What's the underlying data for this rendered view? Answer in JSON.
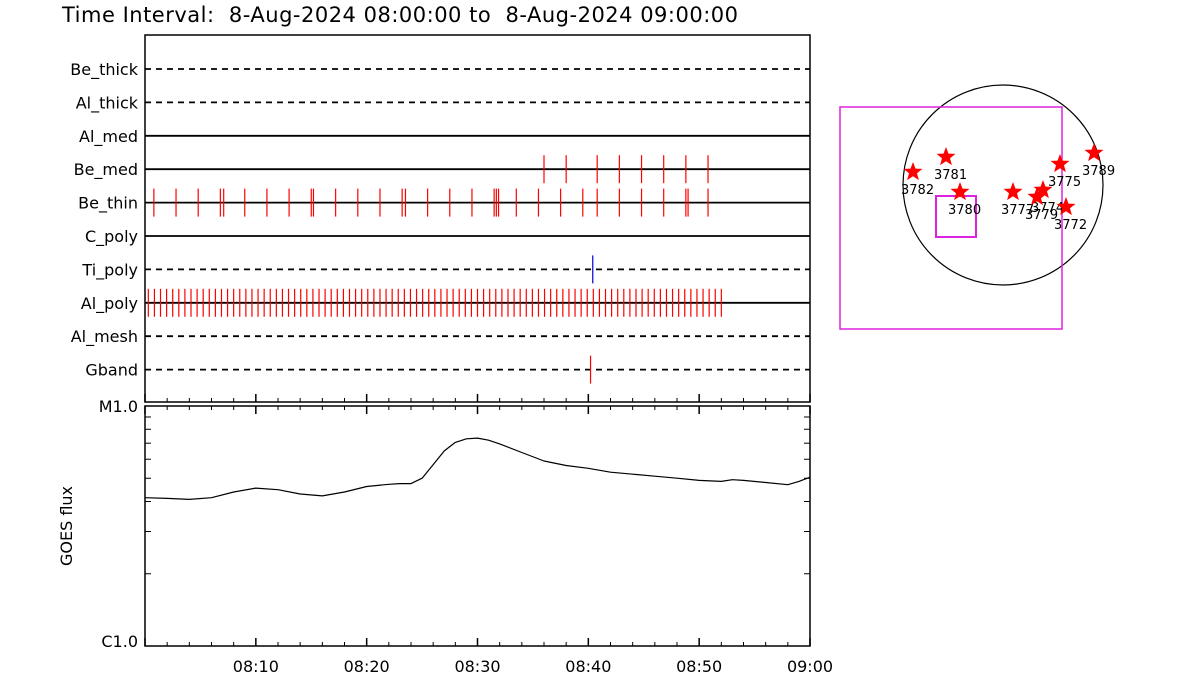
{
  "title": "Time Interval:  8-Aug-2024 08:00:00 to  8-Aug-2024 09:00:00",
  "colors": {
    "event_red": "#ff0000",
    "event_blue": "#0000cc",
    "box_magenta": "#dd22dd",
    "star_red": "#ff0000"
  },
  "chart_data": [
    {
      "type": "event-timeline",
      "x_range_minutes": [
        0,
        60
      ],
      "channels": [
        {
          "name": "Be_thick",
          "line": "dashed",
          "events": []
        },
        {
          "name": "Al_thick",
          "line": "dashed",
          "events": []
        },
        {
          "name": "Al_med",
          "line": "solid",
          "events": []
        },
        {
          "name": "Be_med",
          "line": "solid",
          "events": [
            36.0,
            38.0,
            40.8,
            42.8,
            44.8,
            46.8,
            48.8,
            50.8
          ]
        },
        {
          "name": "Be_thin",
          "line": "solid",
          "events": [
            0.8,
            2.8,
            4.8,
            6.8,
            7.1,
            9.0,
            11.0,
            13.0,
            15.0,
            15.2,
            17.2,
            19.2,
            21.2,
            23.2,
            23.5,
            25.5,
            27.5,
            29.5,
            31.5,
            31.7,
            31.9,
            33.5,
            35.5,
            37.5,
            39.5,
            40.8,
            42.8,
            44.8,
            46.8,
            48.8,
            49.0,
            50.8
          ]
        },
        {
          "name": "C_poly",
          "line": "solid",
          "events": []
        },
        {
          "name": "Ti_poly",
          "line": "dashed",
          "events": [
            40.4
          ],
          "event_color": "blue"
        },
        {
          "name": "Al_poly",
          "line": "solid",
          "events_from": 0.3,
          "events_to": 52.3,
          "event_step": 0.55
        },
        {
          "name": "Al_mesh",
          "line": "dashed",
          "events": []
        },
        {
          "name": "Gband",
          "line": "dashed",
          "events": [
            40.2
          ]
        }
      ]
    },
    {
      "type": "line",
      "yscale": "log",
      "ylabel": "GOES flux",
      "y_top_label": "M1.0",
      "y_bottom_label": "C1.0",
      "ylim": [
        1e-06,
        1e-05
      ],
      "x_ticks": [
        "08:10",
        "08:20",
        "08:30",
        "08:40",
        "08:50",
        "09:00"
      ],
      "x_minutes": [
        0,
        2,
        4,
        6,
        8,
        10,
        12,
        14,
        16,
        18,
        20,
        22,
        23,
        24,
        25,
        26,
        27,
        28,
        29,
        30,
        31,
        32,
        34,
        36,
        38,
        40,
        42,
        44,
        46,
        48,
        50,
        52,
        53,
        54,
        56,
        58,
        59,
        60
      ],
      "y_flux": [
        4.15e-06,
        4.12e-06,
        4.08e-06,
        4.15e-06,
        4.38e-06,
        4.55e-06,
        4.48e-06,
        4.3e-06,
        4.22e-06,
        4.38e-06,
        4.62e-06,
        4.72e-06,
        4.75e-06,
        4.75e-06,
        5e-06,
        5.7e-06,
        6.5e-06,
        7.05e-06,
        7.3e-06,
        7.35e-06,
        7.2e-06,
        6.95e-06,
        6.4e-06,
        5.9e-06,
        5.65e-06,
        5.5e-06,
        5.3e-06,
        5.2e-06,
        5.1e-06,
        5e-06,
        4.9e-06,
        4.85e-06,
        4.93e-06,
        4.9e-06,
        4.8e-06,
        4.7e-06,
        4.85e-06,
        5.05e-06
      ]
    },
    {
      "type": "map",
      "regions": [
        {
          "label": "3789",
          "sx": 0.91,
          "sy": 0.32
        },
        {
          "label": "3775",
          "sx": 0.57,
          "sy": 0.21
        },
        {
          "label": "3781",
          "sx": -0.57,
          "sy": 0.28
        },
        {
          "label": "3782",
          "sx": -0.9,
          "sy": 0.13
        },
        {
          "label": "3780",
          "sx": -0.43,
          "sy": -0.07
        },
        {
          "label": "3777",
          "sx": 0.1,
          "sy": -0.07
        },
        {
          "label": "3774",
          "sx": 0.4,
          "sy": -0.05
        },
        {
          "label": "3779",
          "sx": 0.34,
          "sy": -0.12
        },
        {
          "label": "3772",
          "sx": 0.63,
          "sy": -0.22
        }
      ]
    }
  ]
}
